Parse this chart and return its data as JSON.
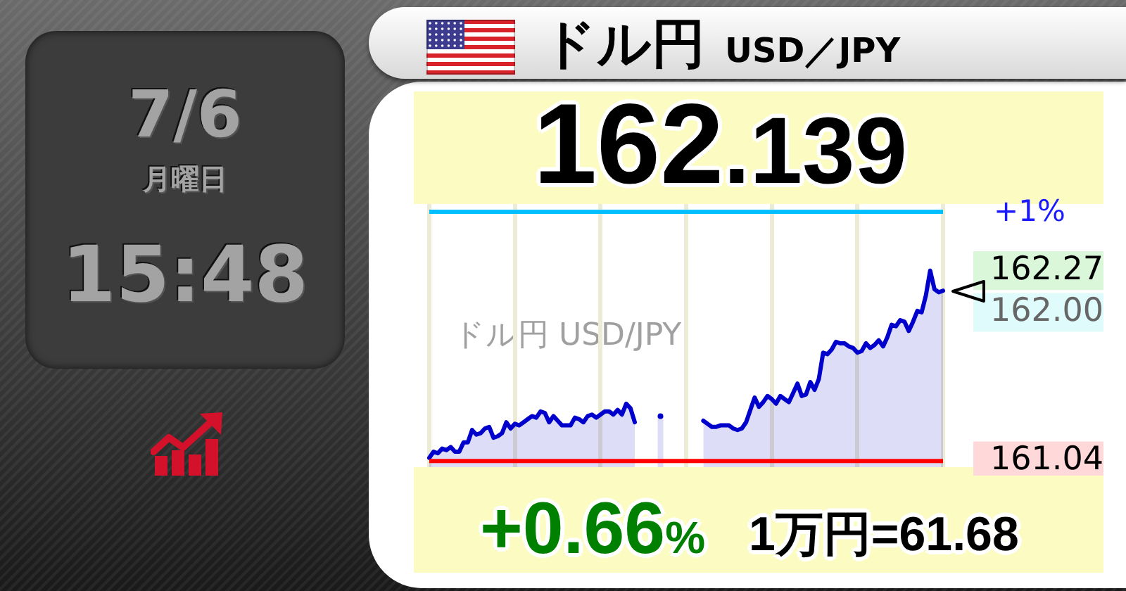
{
  "chart_data": {
    "type": "area",
    "title": "ドル円",
    "subtitle": "USD／JPY",
    "annotations": [
      "162.139",
      "+0.66%",
      "1万円=61.68",
      "7/6",
      "月曜日",
      "15:48",
      "ドル円 USD/JPY",
      "+1%"
    ],
    "categories": [
      null,
      null,
      null,
      null,
      null,
      null,
      null,
      null,
      null,
      null,
      null,
      null,
      null,
      null,
      null,
      null,
      null,
      null,
      null,
      null,
      null,
      null,
      null,
      null,
      null,
      null,
      null,
      null,
      null,
      null,
      null,
      null,
      null,
      null,
      null,
      null,
      null,
      null,
      null,
      null,
      null,
      null,
      null,
      null,
      null,
      null,
      null,
      null,
      null,
      null,
      null,
      null,
      null,
      null,
      null,
      null,
      null,
      null,
      null,
      null,
      null,
      null,
      null,
      null,
      null,
      null,
      null,
      null,
      null,
      null,
      null,
      null,
      null,
      null,
      null,
      null,
      null,
      null,
      null,
      null,
      null,
      null,
      null,
      null,
      null,
      null,
      null,
      null,
      null,
      null,
      null,
      null,
      null,
      null,
      null,
      null,
      null,
      null,
      null,
      null,
      null,
      null,
      null,
      null,
      null,
      null,
      null,
      null,
      null,
      null,
      null,
      null,
      null,
      null,
      null,
      null,
      null,
      null,
      null,
      null,
      null
    ],
    "series": [
      {
        "color": "#0000cc",
        "values": [
          161.06,
          161.1,
          161.09,
          161.12,
          161.11,
          161.13,
          161.1,
          161.1,
          161.16,
          161.16,
          161.24,
          161.21,
          161.22,
          161.25,
          161.26,
          161.19,
          161.2,
          161.22,
          161.29,
          161.25,
          161.28,
          161.27,
          161.29,
          161.31,
          161.33,
          161.32,
          161.36,
          161.35,
          161.29,
          161.33,
          161.3,
          161.27,
          161.27,
          161.27,
          161.32,
          161.31,
          161.29,
          161.33,
          161.34,
          161.32,
          161.34,
          161.36,
          161.36,
          161.34,
          161.37,
          161.34,
          161.41,
          161.38,
          161.29,
          null,
          null,
          null,
          null,
          null,
          161.33,
          null,
          null,
          null,
          null,
          null,
          null,
          null,
          null,
          null,
          161.3,
          161.28,
          161.26,
          161.26,
          161.27,
          161.27,
          161.27,
          161.25,
          161.24,
          161.25,
          161.29,
          161.37,
          161.45,
          161.39,
          161.42,
          161.46,
          161.44,
          161.41,
          161.46,
          161.44,
          161.42,
          161.48,
          161.54,
          161.46,
          161.47,
          161.55,
          161.5,
          161.57,
          161.74,
          161.73,
          161.76,
          161.81,
          161.8,
          161.8,
          161.78,
          161.77,
          161.74,
          161.75,
          161.8,
          161.77,
          161.79,
          161.82,
          161.78,
          161.84,
          161.92,
          161.91,
          161.95,
          161.94,
          161.88,
          161.94,
          162.01,
          162.0,
          162.11,
          162.27,
          162.15,
          162.13,
          162.14
        ]
      }
    ],
    "ylim": [
      161.0,
      162.7
    ],
    "yticks": [
      161.04,
      {
        "value": 162,
        "label": "162.00"
      },
      162.27
    ],
    "ref_lines": [
      {
        "axis": "y",
        "value": 162.65,
        "color": "#00bfff"
      },
      {
        "axis": "y",
        "value": 161.04,
        "color": "#ff0000"
      }
    ],
    "grid": "x",
    "tick_labels": "y"
  }
}
